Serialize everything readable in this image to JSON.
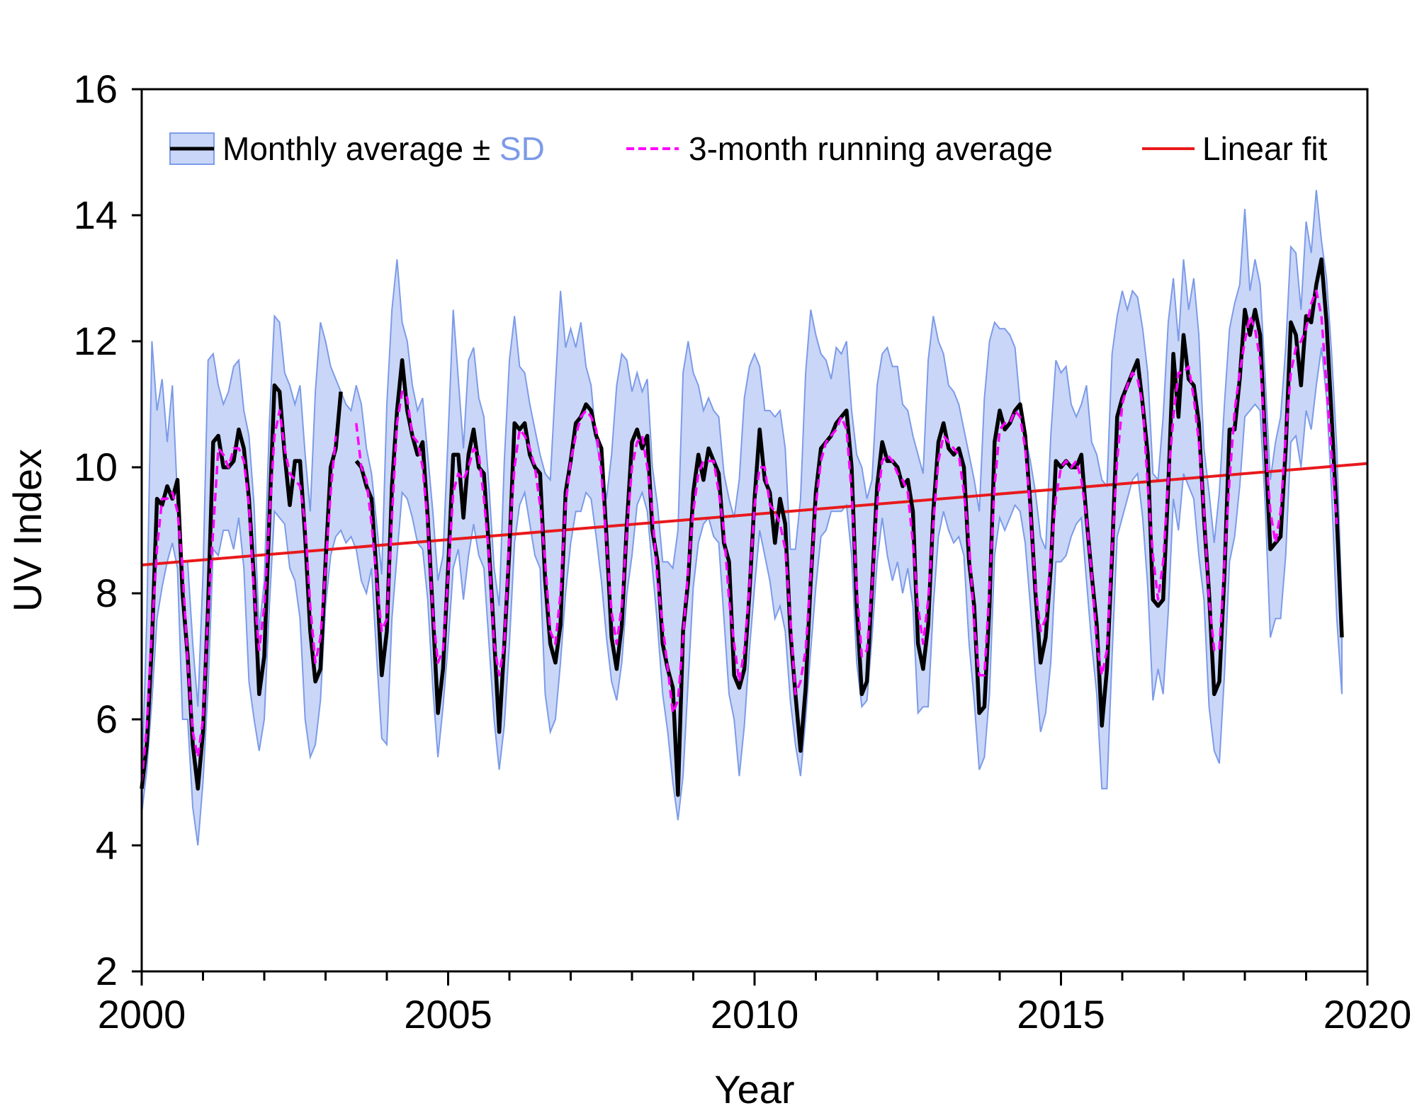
{
  "chart_data": {
    "type": "line",
    "xlabel": "Year",
    "ylabel": "UV Index",
    "xlim": [
      2000,
      2020
    ],
    "ylim": [
      2,
      16
    ],
    "x_ticks": [
      2000,
      2005,
      2010,
      2015,
      2020
    ],
    "y_ticks": [
      2,
      4,
      6,
      8,
      10,
      12,
      14,
      16
    ],
    "grid": false,
    "legend": {
      "placement": "top",
      "monthly": "Monthly average ± ",
      "sd": "SD",
      "running": "3-month running average",
      "fit": "Linear fit"
    },
    "colors": {
      "monthly": "#000000",
      "sd_fill": "#c9d6f7",
      "sd_edge": "#7c9be8",
      "sd_text": "#7c9be8",
      "running": "#ff00ff",
      "fit": "#e8191c"
    },
    "months_per_year": 12,
    "monthly_average": [
      4.9,
      5.6,
      7.2,
      9.5,
      9.4,
      9.7,
      9.5,
      9.8,
      8.0,
      7.0,
      5.6,
      4.9,
      5.8,
      7.8,
      10.4,
      10.5,
      10.0,
      10.0,
      10.1,
      10.6,
      10.3,
      9.5,
      8.2,
      6.4,
      7.0,
      9.2,
      11.3,
      11.2,
      10.2,
      9.4,
      10.1,
      10.1,
      8.9,
      7.4,
      6.6,
      6.8,
      8.5,
      10.0,
      10.3,
      11.2,
      null,
      null,
      10.1,
      10.0,
      9.7,
      9.5,
      8.3,
      6.7,
      7.4,
      9.7,
      10.9,
      11.7,
      10.9,
      10.5,
      10.2,
      10.4,
      9.2,
      7.7,
      6.1,
      6.8,
      8.4,
      10.2,
      10.2,
      9.2,
      10.2,
      10.6,
      10.0,
      9.9,
      8.7,
      7.3,
      5.8,
      7.2,
      8.7,
      10.7,
      10.6,
      10.7,
      10.2,
      10.0,
      9.9,
      8.2,
      7.2,
      6.9,
      7.5,
      9.6,
      10.1,
      10.7,
      10.8,
      11.0,
      10.9,
      10.5,
      10.3,
      8.9,
      7.3,
      6.8,
      7.5,
      9.1,
      10.4,
      10.6,
      10.3,
      10.5,
      9.0,
      8.5,
      7.2,
      6.8,
      6.5,
      4.8,
      7.4,
      8.2,
      9.6,
      10.2,
      9.8,
      10.3,
      10.1,
      9.9,
      8.8,
      8.5,
      6.7,
      6.5,
      6.8,
      8.0,
      9.5,
      10.6,
      9.8,
      9.6,
      8.8,
      9.5,
      9.1,
      7.4,
      6.4,
      5.5,
      6.5,
      8.2,
      9.6,
      10.3,
      10.4,
      10.5,
      10.7,
      10.8,
      10.9,
      10.0,
      7.8,
      6.4,
      6.6,
      8.1,
      9.7,
      10.4,
      10.1,
      10.1,
      10.0,
      9.7,
      9.8,
      9.3,
      7.2,
      6.8,
      7.5,
      9.3,
      10.4,
      10.7,
      10.3,
      10.2,
      10.3,
      10.0,
      8.5,
      7.8,
      6.1,
      6.2,
      7.8,
      10.4,
      10.9,
      10.6,
      10.7,
      10.9,
      11.0,
      10.5,
      9.4,
      8.0,
      6.9,
      7.3,
      8.4,
      10.1,
      10.0,
      10.1,
      10.0,
      10.0,
      10.2,
      9.2,
      8.3,
      7.5,
      5.9,
      6.8,
      8.6,
      10.8,
      11.1,
      11.3,
      11.5,
      11.7,
      11.0,
      10.2,
      7.9,
      7.8,
      7.9,
      9.7,
      11.8,
      10.8,
      12.1,
      11.4,
      11.3,
      10.7,
      9.2,
      8.0,
      6.4,
      6.6,
      8.3,
      10.6,
      10.6,
      11.4,
      12.5,
      12.1,
      12.5,
      12.1,
      10.4,
      8.7,
      8.8,
      8.9,
      10.3,
      12.3,
      12.1,
      11.3,
      12.4,
      12.3,
      12.9,
      13.3,
      12.3,
      10.8,
      9.2,
      7.3
    ],
    "running_average": [
      5.0,
      5.9,
      7.4,
      8.7,
      9.5,
      9.5,
      9.6,
      9.3,
      8.4,
      6.9,
      5.8,
      5.4,
      6.0,
      7.7,
      9.0,
      10.3,
      10.2,
      10.0,
      10.3,
      10.3,
      10.1,
      9.4,
      8.0,
      7.1,
      7.8,
      9.2,
      10.5,
      10.9,
      10.3,
      9.9,
      9.8,
      9.7,
      9.1,
      7.8,
      6.9,
      7.3,
      8.4,
      9.6,
      10.5,
      null,
      null,
      null,
      10.7,
      10.0,
      9.8,
      9.1,
      8.2,
      7.4,
      7.6,
      9.2,
      10.7,
      11.2,
      11.1,
      10.5,
      10.4,
      10.0,
      9.1,
      7.7,
      6.9,
      7.1,
      8.3,
      9.6,
      9.9,
      9.8,
      10.0,
      10.3,
      10.2,
      9.5,
      8.6,
      7.2,
      6.7,
      7.2,
      8.9,
      10.0,
      10.6,
      10.5,
      10.3,
      10.0,
      9.4,
      8.5,
      7.4,
      7.2,
      8.0,
      9.4,
      10.1,
      10.5,
      10.8,
      10.9,
      10.8,
      10.6,
      9.9,
      8.8,
      7.7,
      7.2,
      7.8,
      9.0,
      10.0,
      10.4,
      10.5,
      10.0,
      9.3,
      8.2,
      7.5,
      6.8,
      6.1,
      6.3,
      7.3,
      8.4,
      9.3,
      9.9,
      10.1,
      10.1,
      10.1,
      9.6,
      9.0,
      7.9,
      7.2,
      6.6,
      7.1,
      8.1,
      9.4,
      10.0,
      10.0,
      9.4,
      9.3,
      9.1,
      8.7,
      7.6,
      6.4,
      6.6,
      7.1,
      8.3,
      9.4,
      10.1,
      10.4,
      10.5,
      10.6,
      10.8,
      10.6,
      9.6,
      8.1,
      7.0,
      7.1,
      8.1,
      9.4,
      10.1,
      10.2,
      10.1,
      9.9,
      9.8,
      9.6,
      8.8,
      7.8,
      7.2,
      7.9,
      9.1,
      10.1,
      10.5,
      10.4,
      10.3,
      10.2,
      9.6,
      8.8,
      7.5,
      6.7,
      6.7,
      8.1,
      9.7,
      10.6,
      10.7,
      10.7,
      10.9,
      10.8,
      10.3,
      9.3,
      8.1,
      7.4,
      7.6,
      8.6,
      9.5,
      10.0,
      10.1,
      10.0,
      10.1,
      9.8,
      9.2,
      8.3,
      7.2,
      6.7,
      7.1,
      8.7,
      10.1,
      11.0,
      11.3,
      11.5,
      11.4,
      11.0,
      9.7,
      8.6,
      7.9,
      8.5,
      9.8,
      10.8,
      11.5,
      11.5,
      11.6,
      11.1,
      10.4,
      9.3,
      7.9,
      7.1,
      7.1,
      8.5,
      9.8,
      10.9,
      11.5,
      12.0,
      12.4,
      12.2,
      11.7,
      10.4,
      9.3,
      8.8,
      9.3,
      10.5,
      11.5,
      11.9,
      12.0,
      12.2,
      12.6,
      12.8,
      12.4,
      11.3,
      10.2,
      9.1
    ],
    "sd_upper": [
      4.9,
      7.6,
      12.0,
      10.9,
      11.4,
      10.4,
      11.3,
      9.5,
      8.5,
      8.5,
      7.2,
      6.2,
      8.3,
      11.7,
      11.8,
      11.3,
      11.0,
      11.2,
      11.6,
      11.7,
      10.9,
      10.5,
      9.4,
      7.4,
      8.2,
      10.7,
      12.4,
      12.3,
      11.5,
      11.3,
      11.0,
      11.3,
      10.2,
      9.3,
      11.2,
      12.3,
      12.0,
      11.6,
      11.4,
      11.2,
      11.0,
      10.9,
      11.3,
      11.0,
      10.3,
      9.9,
      9.1,
      8.3,
      11.0,
      12.5,
      13.3,
      12.3,
      12.0,
      11.3,
      10.9,
      11.1,
      10.2,
      9.3,
      8.2,
      8.6,
      10.5,
      12.5,
      11.4,
      10.3,
      11.7,
      11.9,
      11.1,
      10.8,
      9.7,
      8.4,
      7.8,
      10.1,
      11.7,
      12.4,
      11.6,
      11.5,
      11.0,
      10.6,
      10.2,
      9.9,
      9.8,
      11.3,
      12.8,
      11.9,
      12.2,
      11.9,
      12.3,
      11.6,
      11.3,
      10.4,
      10.0,
      9.5,
      10.2,
      11.3,
      11.8,
      11.7,
      11.2,
      11.5,
      11.2,
      11.4,
      10.0,
      9.4,
      8.5,
      8.5,
      8.4,
      9.0,
      11.5,
      12.0,
      11.5,
      11.3,
      10.9,
      11.1,
      10.9,
      10.8,
      9.9,
      9.5,
      9.2,
      9.8,
      11.1,
      11.6,
      11.8,
      11.6,
      10.9,
      10.9,
      10.8,
      10.9,
      10.3,
      8.7,
      8.7,
      9.5,
      11.5,
      12.5,
      12.1,
      11.8,
      11.7,
      11.4,
      11.9,
      11.8,
      12.0,
      10.9,
      10.2,
      10.0,
      9.5,
      9.8,
      11.3,
      11.8,
      11.9,
      11.6,
      11.6,
      11.0,
      10.9,
      10.5,
      10.2,
      9.9,
      11.7,
      12.4,
      12.0,
      11.8,
      11.3,
      11.2,
      11.0,
      10.6,
      10.2,
      9.8,
      9.3,
      11.1,
      12.0,
      12.3,
      12.2,
      12.2,
      12.1,
      11.9,
      11.0,
      10.5,
      10.1,
      9.6,
      8.9,
      8.7,
      10.5,
      11.7,
      11.5,
      11.6,
      11.0,
      10.8,
      11.0,
      11.3,
      10.4,
      10.2,
      9.8,
      9.7,
      11.8,
      12.4,
      12.8,
      12.5,
      12.8,
      12.7,
      12.2,
      11.5,
      9.9,
      9.8,
      10.8,
      12.3,
      13.0,
      12.0,
      13.3,
      12.5,
      13.0,
      12.1,
      10.3,
      9.6,
      8.8,
      9.6,
      11.0,
      12.2,
      12.6,
      12.9,
      14.1,
      12.8,
      13.3,
      12.9,
      11.4,
      9.8,
      10.4,
      10.8,
      11.9,
      13.5,
      13.4,
      12.5,
      13.9,
      13.4,
      14.4,
      13.6,
      13.0,
      11.8,
      10.3,
      7.8
    ],
    "sd_lower": [
      4.5,
      5.2,
      6.3,
      7.6,
      8.1,
      8.5,
      8.8,
      8.4,
      6.0,
      6.0,
      4.6,
      4.0,
      5.0,
      6.5,
      8.7,
      8.6,
      9.0,
      9.0,
      8.7,
      9.2,
      8.4,
      6.6,
      6.0,
      5.5,
      6.0,
      7.8,
      9.3,
      9.2,
      9.1,
      8.4,
      8.2,
      7.6,
      6.0,
      5.4,
      5.6,
      6.3,
      7.8,
      8.6,
      8.9,
      9.0,
      8.8,
      8.9,
      8.7,
      8.2,
      8.0,
      8.4,
      7.0,
      5.7,
      5.6,
      7.6,
      8.6,
      9.6,
      9.5,
      9.2,
      8.8,
      8.7,
      7.9,
      6.5,
      5.4,
      6.2,
      7.2,
      8.4,
      8.7,
      7.9,
      8.6,
      9.1,
      8.6,
      8.4,
      7.2,
      6.0,
      5.2,
      5.9,
      7.2,
      8.8,
      9.4,
      9.6,
      9.1,
      8.6,
      8.4,
      6.4,
      5.8,
      6.0,
      6.9,
      8.0,
      8.8,
      9.3,
      9.3,
      9.6,
      9.5,
      8.9,
      8.2,
      7.3,
      6.6,
      6.3,
      6.9,
      8.0,
      8.6,
      9.4,
      9.6,
      9.3,
      8.4,
      7.5,
      6.4,
      5.8,
      5.0,
      4.4,
      5.1,
      6.6,
      8.1,
      8.8,
      9.1,
      9.2,
      8.9,
      8.8,
      7.6,
      6.4,
      6.0,
      5.1,
      5.9,
      7.1,
      8.1,
      9.0,
      8.6,
      8.2,
      7.6,
      7.8,
      7.4,
      6.3,
      5.6,
      5.1,
      6.0,
      7.1,
      8.1,
      8.9,
      9.0,
      9.3,
      9.3,
      9.3,
      9.4,
      8.6,
      6.9,
      6.2,
      6.3,
      7.3,
      8.5,
      9.2,
      8.6,
      8.2,
      8.5,
      8.0,
      8.4,
      7.8,
      6.1,
      6.2,
      6.2,
      7.8,
      8.9,
      9.3,
      9.0,
      8.8,
      8.9,
      8.6,
      7.2,
      6.3,
      5.2,
      5.4,
      6.4,
      8.6,
      9.2,
      9.0,
      9.2,
      9.4,
      9.3,
      8.8,
      7.8,
      6.7,
      5.8,
      6.1,
      6.9,
      8.5,
      8.5,
      8.6,
      8.9,
      9.1,
      9.2,
      8.2,
      7.2,
      6.4,
      4.9,
      4.9,
      7.0,
      8.9,
      9.2,
      9.5,
      9.8,
      9.9,
      9.2,
      8.1,
      6.3,
      6.8,
      6.4,
      7.7,
      9.5,
      9.0,
      9.9,
      9.7,
      9.5,
      8.6,
      7.9,
      6.2,
      5.5,
      5.3,
      6.7,
      8.5,
      8.9,
      9.7,
      10.8,
      10.9,
      11.0,
      10.9,
      9.4,
      7.3,
      7.6,
      7.6,
      8.6,
      10.4,
      10.5,
      10.0,
      10.9,
      10.6,
      11.3,
      11.9,
      11.1,
      9.6,
      7.6,
      6.4
    ],
    "linear_fit": {
      "x": [
        2000,
        2020
      ],
      "y": [
        8.45,
        10.06
      ]
    }
  }
}
